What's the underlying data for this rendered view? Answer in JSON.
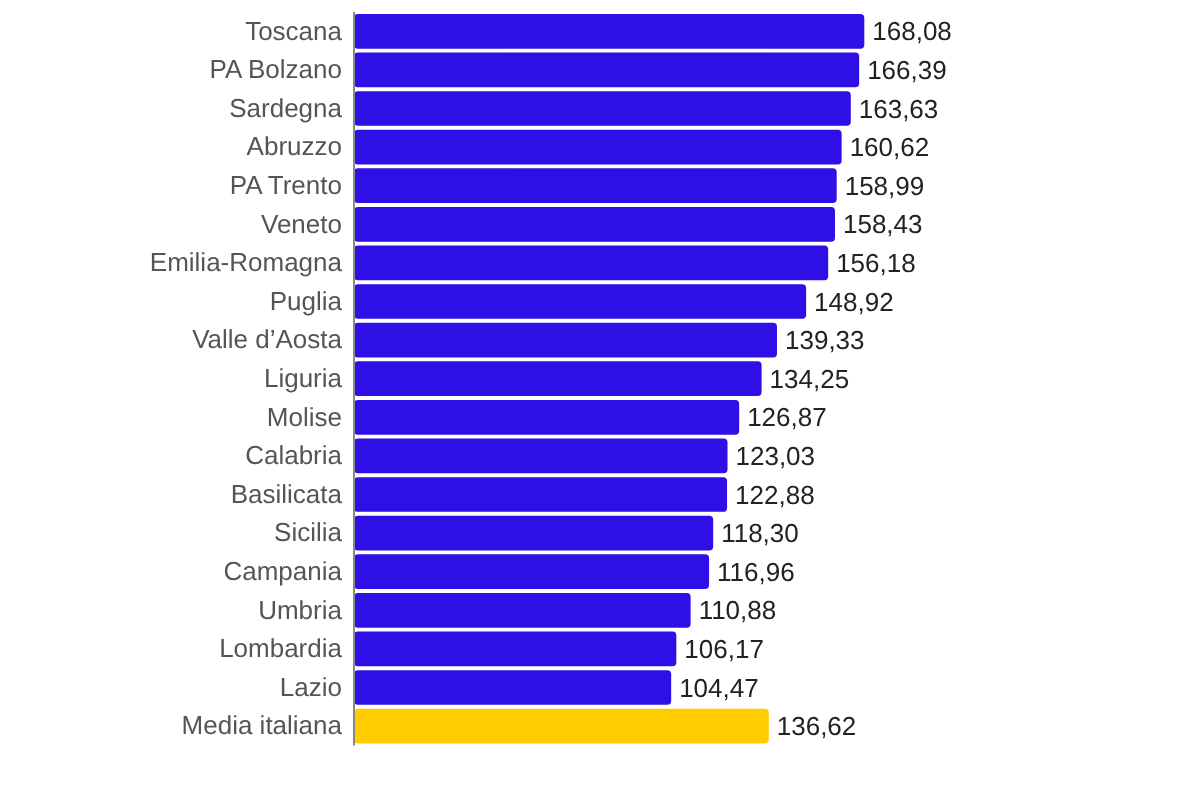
{
  "chart_data": {
    "type": "bar",
    "orientation": "horizontal",
    "relative": false,
    "categories": [
      "Toscana",
      "PA Bolzano",
      "Sardegna",
      "Abruzzo",
      "PA Trento",
      "Veneto",
      "Emilia-Romagna",
      "Puglia",
      "Valle d’Aosta",
      "Liguria",
      "Molise",
      "Calabria",
      "Basilicata",
      "Sicilia",
      "Campania",
      "Umbria",
      "Lombardia",
      "Lazio",
      "Media italiana"
    ],
    "values": [
      168.08,
      166.39,
      163.63,
      160.62,
      158.99,
      158.43,
      156.18,
      148.92,
      139.33,
      134.25,
      126.87,
      123.03,
      122.88,
      118.3,
      116.96,
      110.88,
      106.17,
      104.47,
      136.62
    ],
    "value_labels": [
      "168,08",
      "166,39",
      "163,63",
      "160,62",
      "158,99",
      "158,43",
      "156,18",
      "148,92",
      "139,33",
      "134,25",
      "126,87",
      "123,03",
      "122,88",
      "118,30",
      "116,96",
      "110,88",
      "106,17",
      "104,47",
      "136,62"
    ],
    "colors": [
      "#2e0fe6",
      "#2e0fe6",
      "#2e0fe6",
      "#2e0fe6",
      "#2e0fe6",
      "#2e0fe6",
      "#2e0fe6",
      "#2e0fe6",
      "#2e0fe6",
      "#2e0fe6",
      "#2e0fe6",
      "#2e0fe6",
      "#2e0fe6",
      "#2e0fe6",
      "#2e0fe6",
      "#2e0fe6",
      "#2e0fe6",
      "#2e0fe6",
      "#ffcc00"
    ]
  }
}
